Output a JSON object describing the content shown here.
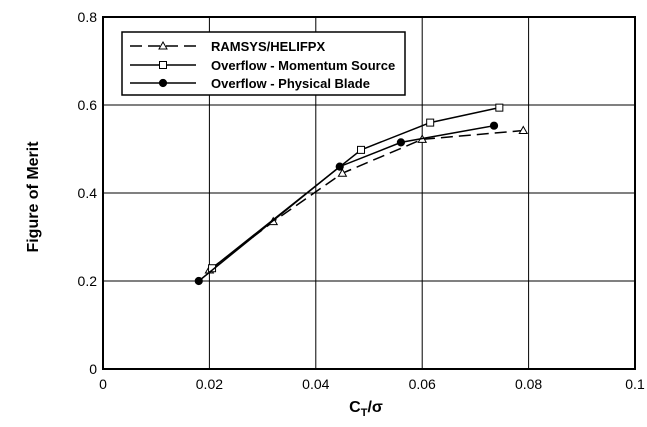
{
  "chart_data": {
    "type": "line",
    "title": "",
    "xlabel": "C_T/σ",
    "xlabel_main": "C",
    "xlabel_sub": "T",
    "xlabel_rest": "/σ",
    "ylabel": "Figure of Merit",
    "xlim": [
      0,
      0.1
    ],
    "ylim": [
      0,
      0.8
    ],
    "xticks": [
      "0",
      "0.02",
      "0.04",
      "0.06",
      "0.08",
      "0.1"
    ],
    "yticks": [
      "0",
      "0.2",
      "0.4",
      "0.6",
      "0.8"
    ],
    "grid": true,
    "legend_position": "top-left",
    "series": [
      {
        "name": "RAMSYS/HELIFPX",
        "line": "dashed",
        "marker": "triangle-open",
        "x": [
          0.02,
          0.032,
          0.045,
          0.06,
          0.079
        ],
        "y": [
          0.225,
          0.335,
          0.445,
          0.522,
          0.542
        ]
      },
      {
        "name": "Overflow - Momentum Source",
        "line": "solid",
        "marker": "square-open",
        "x": [
          0.0205,
          0.0485,
          0.0615,
          0.0745
        ],
        "y": [
          0.229,
          0.498,
          0.56,
          0.594
        ]
      },
      {
        "name": "Overflow - Physical Blade",
        "line": "solid",
        "marker": "circle-filled",
        "x": [
          0.018,
          0.0445,
          0.056,
          0.0735
        ],
        "y": [
          0.2,
          0.46,
          0.515,
          0.553
        ]
      }
    ]
  }
}
